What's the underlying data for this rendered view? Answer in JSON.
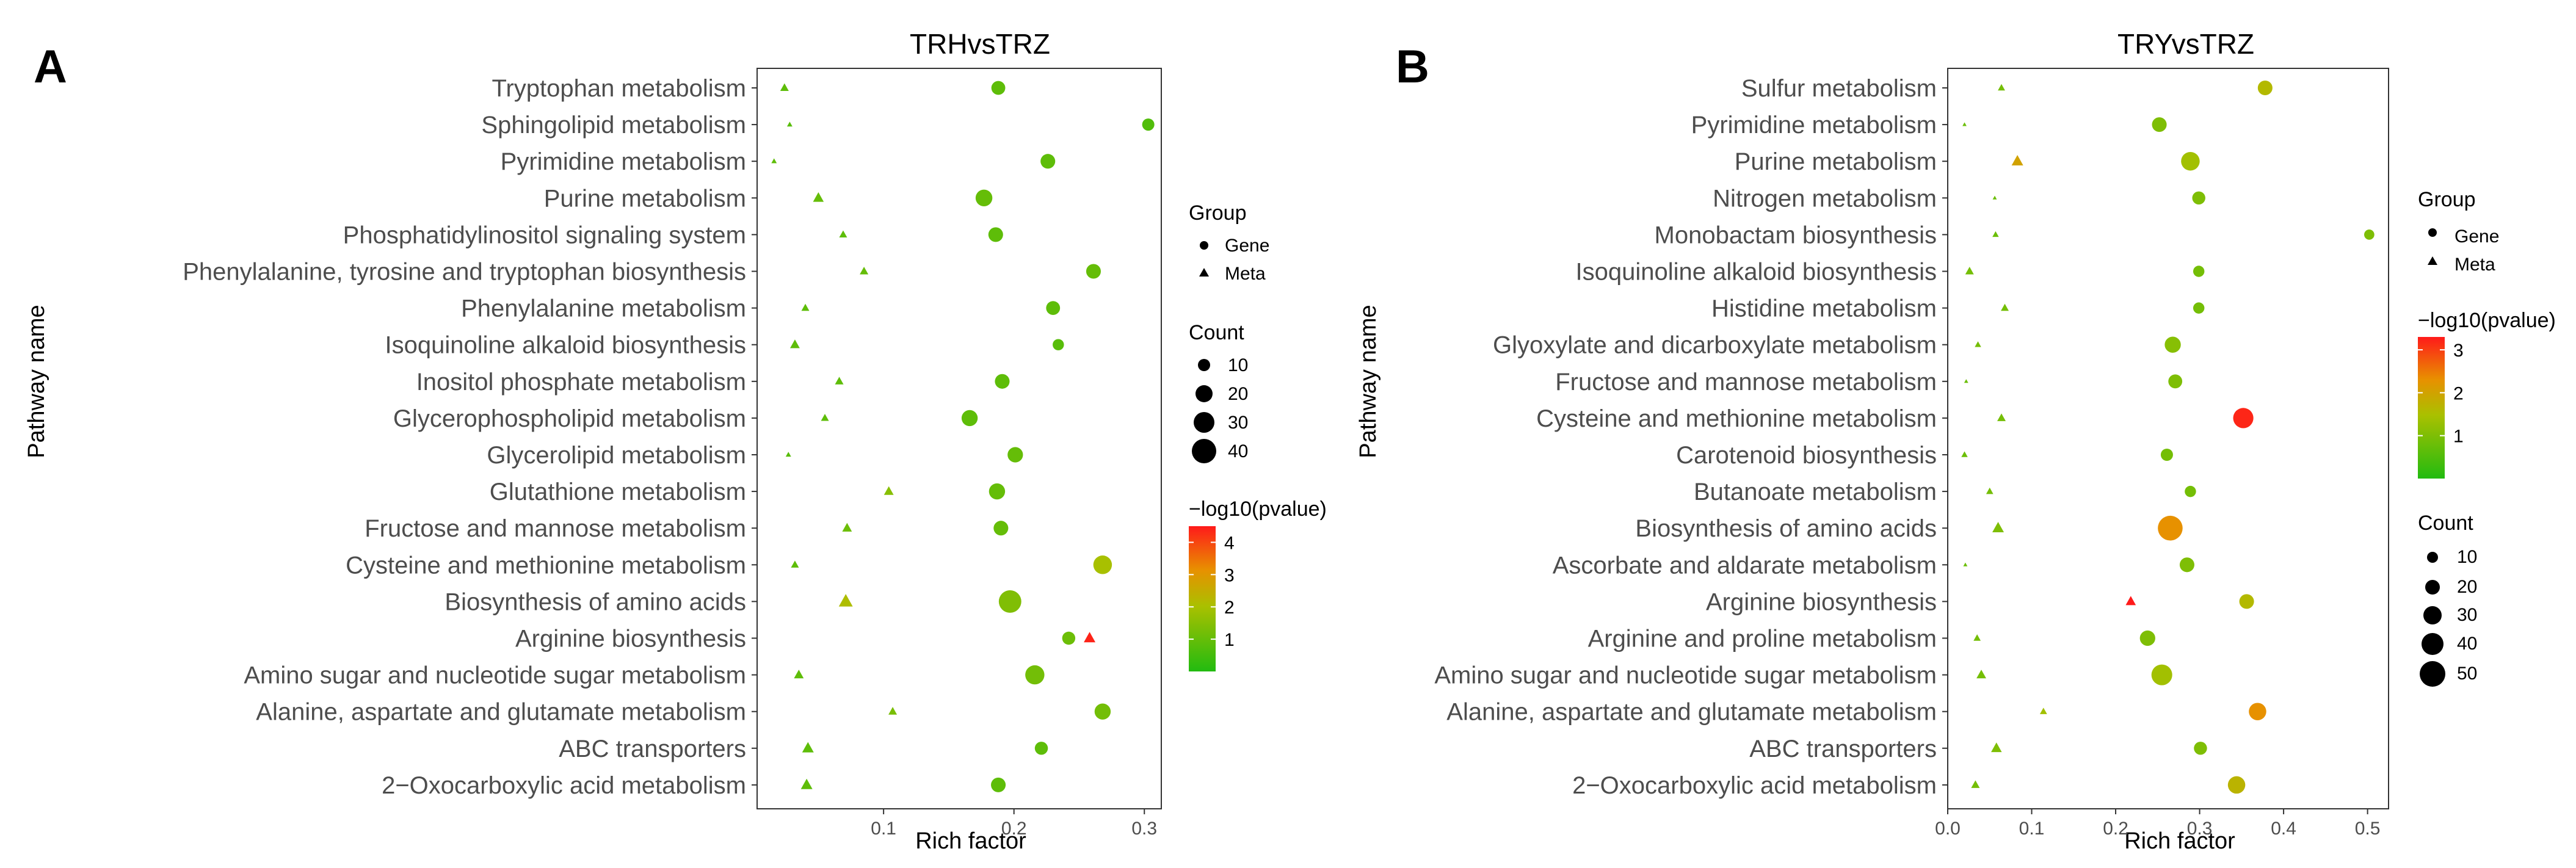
{
  "chart_data": [
    {
      "type": "scatter",
      "panel_label": "A",
      "title": "TRHvsTRZ",
      "ylabel": "Pathway name",
      "xlabel": "Rich factor",
      "xlim": [
        0.003,
        0.313
      ],
      "xticks": [
        0.1,
        0.2,
        0.3
      ],
      "xtick_labels": [
        "0.1",
        "0.2",
        "0.3"
      ],
      "colorbar_range": [
        0,
        4.5
      ],
      "pathways": [
        "Tryptophan metabolism",
        "Sphingolipid metabolism",
        "Pyrimidine metabolism",
        "Purine metabolism",
        "Phosphatidylinositol signaling system",
        "Phenylalanine, tyrosine and tryptophan biosynthesis",
        "Phenylalanine metabolism",
        "Isoquinoline alkaloid biosynthesis",
        "Inositol phosphate metabolism",
        "Glycerophospholipid metabolism",
        "Glycerolipid metabolism",
        "Glutathione metabolism",
        "Fructose and mannose metabolism",
        "Cysteine and methionine metabolism",
        "Biosynthesis of amino acids",
        "Arginine biosynthesis",
        "Amino sugar and nucleotide sugar metabolism",
        "Alanine, aspartate and glutamate metabolism",
        "ABC transporters",
        "2−Oxocarboxylic acid metabolism"
      ],
      "series": [
        {
          "name": "Gene",
          "shape": "circle",
          "points": [
            {
              "pathway": "Tryptophan metabolism",
              "rich_factor": 0.188,
              "count": 16,
              "neg_log10_p": 0.9
            },
            {
              "pathway": "Sphingolipid metabolism",
              "rich_factor": 0.303,
              "count": 12,
              "neg_log10_p": 0.7
            },
            {
              "pathway": "Pyrimidine metabolism",
              "rich_factor": 0.226,
              "count": 18,
              "neg_log10_p": 0.9
            },
            {
              "pathway": "Purine metabolism",
              "rich_factor": 0.177,
              "count": 24,
              "neg_log10_p": 1.0
            },
            {
              "pathway": "Phosphatidylinositol signaling system",
              "rich_factor": 0.186,
              "count": 18,
              "neg_log10_p": 0.9
            },
            {
              "pathway": "Phenylalanine, tyrosine and tryptophan biosynthesis",
              "rich_factor": 0.261,
              "count": 18,
              "neg_log10_p": 1.0
            },
            {
              "pathway": "Phenylalanine metabolism",
              "rich_factor": 0.23,
              "count": 16,
              "neg_log10_p": 0.9
            },
            {
              "pathway": "Isoquinoline alkaloid biosynthesis",
              "rich_factor": 0.234,
              "count": 10,
              "neg_log10_p": 0.8
            },
            {
              "pathway": "Inositol phosphate metabolism",
              "rich_factor": 0.191,
              "count": 18,
              "neg_log10_p": 0.9
            },
            {
              "pathway": "Glycerophospholipid metabolism",
              "rich_factor": 0.166,
              "count": 22,
              "neg_log10_p": 0.9
            },
            {
              "pathway": "Glycerolipid metabolism",
              "rich_factor": 0.201,
              "count": 20,
              "neg_log10_p": 1.0
            },
            {
              "pathway": "Glutathione metabolism",
              "rich_factor": 0.187,
              "count": 22,
              "neg_log10_p": 1.0
            },
            {
              "pathway": "Fructose and mannose metabolism",
              "rich_factor": 0.19,
              "count": 18,
              "neg_log10_p": 1.0
            },
            {
              "pathway": "Cysteine and methionine metabolism",
              "rich_factor": 0.268,
              "count": 30,
              "neg_log10_p": 2.0
            },
            {
              "pathway": "Biosynthesis of amino acids",
              "rich_factor": 0.197,
              "count": 45,
              "neg_log10_p": 1.4
            },
            {
              "pathway": "Arginine biosynthesis",
              "rich_factor": 0.242,
              "count": 14,
              "neg_log10_p": 1.1
            },
            {
              "pathway": "Amino sugar and nucleotide sugar metabolism",
              "rich_factor": 0.216,
              "count": 32,
              "neg_log10_p": 1.2
            },
            {
              "pathway": "Alanine, aspartate and glutamate metabolism",
              "rich_factor": 0.268,
              "count": 22,
              "neg_log10_p": 1.2
            },
            {
              "pathway": "ABC transporters",
              "rich_factor": 0.221,
              "count": 14,
              "neg_log10_p": 0.9
            },
            {
              "pathway": "2−Oxocarboxylic acid metabolism",
              "rich_factor": 0.188,
              "count": 18,
              "neg_log10_p": 0.9
            }
          ]
        },
        {
          "name": "Meta",
          "shape": "triangle",
          "points": [
            {
              "pathway": "Tryptophan metabolism",
              "rich_factor": 0.024,
              "count": 6,
              "neg_log10_p": 0.9
            },
            {
              "pathway": "Sphingolipid metabolism",
              "rich_factor": 0.028,
              "count": 2,
              "neg_log10_p": 0.8
            },
            {
              "pathway": "Pyrimidine metabolism",
              "rich_factor": 0.016,
              "count": 2,
              "neg_log10_p": 0.9
            },
            {
              "pathway": "Purine metabolism",
              "rich_factor": 0.05,
              "count": 10,
              "neg_log10_p": 1.0
            },
            {
              "pathway": "Phosphatidylinositol signaling system",
              "rich_factor": 0.069,
              "count": 5,
              "neg_log10_p": 0.9
            },
            {
              "pathway": "Phenylalanine, tyrosine and tryptophan biosynthesis",
              "rich_factor": 0.085,
              "count": 6,
              "neg_log10_p": 1.0
            },
            {
              "pathway": "Phenylalanine metabolism",
              "rich_factor": 0.04,
              "count": 5,
              "neg_log10_p": 0.9
            },
            {
              "pathway": "Isoquinoline alkaloid biosynthesis",
              "rich_factor": 0.032,
              "count": 8,
              "neg_log10_p": 0.9
            },
            {
              "pathway": "Inositol phosphate metabolism",
              "rich_factor": 0.066,
              "count": 6,
              "neg_log10_p": 0.9
            },
            {
              "pathway": "Glycerophospholipid metabolism",
              "rich_factor": 0.055,
              "count": 5,
              "neg_log10_p": 0.9
            },
            {
              "pathway": "Glycerolipid metabolism",
              "rich_factor": 0.027,
              "count": 2,
              "neg_log10_p": 0.8
            },
            {
              "pathway": "Glutathione metabolism",
              "rich_factor": 0.104,
              "count": 8,
              "neg_log10_p": 1.5
            },
            {
              "pathway": "Fructose and mannose metabolism",
              "rich_factor": 0.072,
              "count": 8,
              "neg_log10_p": 1.1
            },
            {
              "pathway": "Cysteine and methionine metabolism",
              "rich_factor": 0.032,
              "count": 5,
              "neg_log10_p": 0.9
            },
            {
              "pathway": "Biosynthesis of amino acids",
              "rich_factor": 0.071,
              "count": 18,
              "neg_log10_p": 2.1
            },
            {
              "pathway": "Arginine biosynthesis",
              "rich_factor": 0.258,
              "count": 12,
              "neg_log10_p": 4.4
            },
            {
              "pathway": "Amino sugar and nucleotide sugar metabolism",
              "rich_factor": 0.035,
              "count": 8,
              "neg_log10_p": 0.9
            },
            {
              "pathway": "Alanine, aspartate and glutamate metabolism",
              "rich_factor": 0.107,
              "count": 6,
              "neg_log10_p": 1.3
            },
            {
              "pathway": "ABC transporters",
              "rich_factor": 0.042,
              "count": 12,
              "neg_log10_p": 0.9
            },
            {
              "pathway": "2−Oxocarboxylic acid metabolism",
              "rich_factor": 0.041,
              "count": 12,
              "neg_log10_p": 0.9
            }
          ]
        }
      ],
      "legend": {
        "group_title": "Group",
        "group_items": [
          "Gene",
          "Meta"
        ],
        "count_title": "Count",
        "count_items": [
          10,
          20,
          30,
          40
        ],
        "color_title": "−log10(pvalue)",
        "color_ticks": [
          1,
          2,
          3,
          4
        ],
        "color_tick_labels": [
          "1",
          "2",
          "3",
          "4"
        ]
      }
    },
    {
      "type": "scatter",
      "panel_label": "B",
      "title": "TRYvsTRZ",
      "ylabel": "Pathway name",
      "xlabel": "Rich factor",
      "xlim": [
        0.0,
        0.525
      ],
      "xticks": [
        0.0,
        0.1,
        0.2,
        0.3,
        0.4,
        0.5
      ],
      "xtick_labels": [
        "0.0",
        "0.1",
        "0.2",
        "0.3",
        "0.4",
        "0.5"
      ],
      "colorbar_range": [
        0,
        3.3
      ],
      "pathways": [
        "Sulfur metabolism",
        "Pyrimidine metabolism",
        "Purine metabolism",
        "Nitrogen metabolism",
        "Monobactam biosynthesis",
        "Isoquinoline alkaloid biosynthesis",
        "Histidine metabolism",
        "Glyoxylate and dicarboxylate metabolism",
        "Fructose and mannose metabolism",
        "Cysteine and methionine metabolism",
        "Carotenoid biosynthesis",
        "Butanoate metabolism",
        "Biosynthesis of amino acids",
        "Ascorbate and aldarate metabolism",
        "Arginine biosynthesis",
        "Arginine and proline metabolism",
        "Amino sugar and nucleotide sugar metabolism",
        "Alanine, aspartate and glutamate metabolism",
        "ABC transporters",
        "2−Oxocarboxylic acid metabolism"
      ],
      "series": [
        {
          "name": "Gene",
          "shape": "circle",
          "points": [
            {
              "pathway": "Sulfur metabolism",
              "rich_factor": 0.378,
              "count": 18,
              "neg_log10_p": 1.6
            },
            {
              "pathway": "Pyrimidine metabolism",
              "rich_factor": 0.252,
              "count": 18,
              "neg_log10_p": 1.0
            },
            {
              "pathway": "Purine metabolism",
              "rich_factor": 0.289,
              "count": 30,
              "neg_log10_p": 1.4
            },
            {
              "pathway": "Nitrogen metabolism",
              "rich_factor": 0.299,
              "count": 14,
              "neg_log10_p": 1.0
            },
            {
              "pathway": "Monobactam biosynthesis",
              "rich_factor": 0.502,
              "count": 8,
              "neg_log10_p": 1.0
            },
            {
              "pathway": "Isoquinoline alkaloid biosynthesis",
              "rich_factor": 0.299,
              "count": 10,
              "neg_log10_p": 0.9
            },
            {
              "pathway": "Histidine metabolism",
              "rich_factor": 0.299,
              "count": 10,
              "neg_log10_p": 0.9
            },
            {
              "pathway": "Glyoxylate and dicarboxylate metabolism",
              "rich_factor": 0.268,
              "count": 22,
              "neg_log10_p": 1.1
            },
            {
              "pathway": "Fructose and mannose metabolism",
              "rich_factor": 0.271,
              "count": 16,
              "neg_log10_p": 1.0
            },
            {
              "pathway": "Cysteine and methionine metabolism",
              "rich_factor": 0.352,
              "count": 36,
              "neg_log10_p": 3.2
            },
            {
              "pathway": "Carotenoid biosynthesis",
              "rich_factor": 0.261,
              "count": 12,
              "neg_log10_p": 0.9
            },
            {
              "pathway": "Butanoate metabolism",
              "rich_factor": 0.289,
              "count": 10,
              "neg_log10_p": 0.9
            },
            {
              "pathway": "Biosynthesis of amino acids",
              "rich_factor": 0.265,
              "count": 55,
              "neg_log10_p": 2.3
            },
            {
              "pathway": "Ascorbate and aldarate metabolism",
              "rich_factor": 0.285,
              "count": 18,
              "neg_log10_p": 1.0
            },
            {
              "pathway": "Arginine biosynthesis",
              "rich_factor": 0.356,
              "count": 18,
              "neg_log10_p": 1.6
            },
            {
              "pathway": "Arginine and proline metabolism",
              "rich_factor": 0.238,
              "count": 20,
              "neg_log10_p": 1.0
            },
            {
              "pathway": "Amino sugar and nucleotide sugar metabolism",
              "rich_factor": 0.255,
              "count": 38,
              "neg_log10_p": 1.4
            },
            {
              "pathway": "Alanine, aspartate and glutamate metabolism",
              "rich_factor": 0.369,
              "count": 26,
              "neg_log10_p": 2.3
            },
            {
              "pathway": "ABC transporters",
              "rich_factor": 0.301,
              "count": 14,
              "neg_log10_p": 1.0
            },
            {
              "pathway": "2−Oxocarboxylic acid metabolism",
              "rich_factor": 0.344,
              "count": 26,
              "neg_log10_p": 1.7
            }
          ]
        },
        {
          "name": "Meta",
          "shape": "triangle",
          "points": [
            {
              "pathway": "Sulfur metabolism",
              "rich_factor": 0.064,
              "count": 4,
              "neg_log10_p": 0.9
            },
            {
              "pathway": "Pyrimidine metabolism",
              "rich_factor": 0.02,
              "count": 1,
              "neg_log10_p": 0.8
            },
            {
              "pathway": "Purine metabolism",
              "rich_factor": 0.083,
              "count": 12,
              "neg_log10_p": 2.0
            },
            {
              "pathway": "Nitrogen metabolism",
              "rich_factor": 0.056,
              "count": 1,
              "neg_log10_p": 0.8
            },
            {
              "pathway": "Monobactam biosynthesis",
              "rich_factor": 0.057,
              "count": 3,
              "neg_log10_p": 0.8
            },
            {
              "pathway": "Isoquinoline alkaloid biosynthesis",
              "rich_factor": 0.026,
              "count": 6,
              "neg_log10_p": 0.9
            },
            {
              "pathway": "Histidine metabolism",
              "rich_factor": 0.068,
              "count": 5,
              "neg_log10_p": 0.9
            },
            {
              "pathway": "Glyoxylate and dicarboxylate metabolism",
              "rich_factor": 0.036,
              "count": 3,
              "neg_log10_p": 0.9
            },
            {
              "pathway": "Fructose and mannose metabolism",
              "rich_factor": 0.022,
              "count": 1,
              "neg_log10_p": 0.8
            },
            {
              "pathway": "Cysteine and methionine metabolism",
              "rich_factor": 0.064,
              "count": 6,
              "neg_log10_p": 0.9
            },
            {
              "pathway": "Carotenoid biosynthesis",
              "rich_factor": 0.02,
              "count": 3,
              "neg_log10_p": 0.8
            },
            {
              "pathway": "Butanoate metabolism",
              "rich_factor": 0.05,
              "count": 4,
              "neg_log10_p": 0.9
            },
            {
              "pathway": "Biosynthesis of amino acids",
              "rich_factor": 0.06,
              "count": 12,
              "neg_log10_p": 1.0
            },
            {
              "pathway": "Ascorbate and aldarate metabolism",
              "rich_factor": 0.021,
              "count": 1,
              "neg_log10_p": 0.8
            },
            {
              "pathway": "Arginine biosynthesis",
              "rich_factor": 0.218,
              "count": 9,
              "neg_log10_p": 3.3
            },
            {
              "pathway": "Arginine and proline metabolism",
              "rich_factor": 0.035,
              "count": 4,
              "neg_log10_p": 0.9
            },
            {
              "pathway": "Amino sugar and nucleotide sugar metabolism",
              "rich_factor": 0.04,
              "count": 8,
              "neg_log10_p": 0.9
            },
            {
              "pathway": "Alanine, aspartate and glutamate metabolism",
              "rich_factor": 0.114,
              "count": 4,
              "neg_log10_p": 1.4
            },
            {
              "pathway": "ABC transporters",
              "rich_factor": 0.058,
              "count": 10,
              "neg_log10_p": 1.0
            },
            {
              "pathway": "2−Oxocarboxylic acid metabolism",
              "rich_factor": 0.033,
              "count": 6,
              "neg_log10_p": 0.9
            }
          ]
        }
      ],
      "legend": {
        "group_title": "Group",
        "group_items": [
          "Gene",
          "Meta"
        ],
        "color_title": "−log10(pvalue)",
        "color_ticks": [
          1,
          2,
          3
        ],
        "color_tick_labels": [
          "1",
          "2",
          "3"
        ],
        "count_title": "Count",
        "count_items": [
          10,
          20,
          30,
          40,
          50
        ]
      }
    }
  ]
}
